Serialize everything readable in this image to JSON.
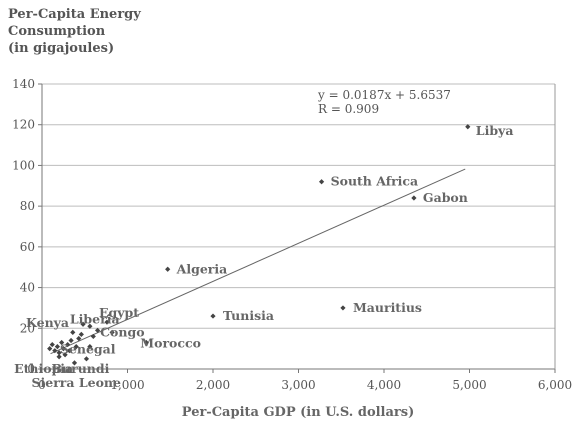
{
  "chart_data": {
    "type": "scatter",
    "title": "",
    "ylabel_lines": [
      "Per-Capita Energy",
      "Consumption",
      "(in gigajoules)"
    ],
    "xlabel": "Per-Capita GDP (in U.S. dollars)",
    "xlim": [
      0,
      6000
    ],
    "ylim": [
      0,
      140
    ],
    "xticks": [
      0,
      1000,
      2000,
      3000,
      4000,
      5000,
      6000
    ],
    "xtick_labels": [
      "0",
      "1,000",
      "2,000",
      "3,000",
      "4,000",
      "5,000",
      "6,000"
    ],
    "yticks": [
      0,
      20,
      40,
      60,
      80,
      100,
      120,
      140
    ],
    "ytick_labels": [
      "0",
      "20",
      "40",
      "60",
      "80",
      "100",
      "120",
      "140"
    ],
    "grid": "horizontal",
    "trendline": {
      "slope": 0.0187,
      "intercept": 5.6537,
      "x_range": [
        100,
        4950
      ]
    },
    "equation": "y = 0.0187x + 5.6537",
    "r_value": "R = 0.909",
    "points": [
      {
        "x": 4980,
        "y": 119,
        "label": "Libya"
      },
      {
        "x": 3270,
        "y": 92,
        "label": "South Africa"
      },
      {
        "x": 4350,
        "y": 84,
        "label": "Gabon"
      },
      {
        "x": 1470,
        "y": 49,
        "label": "Algeria"
      },
      {
        "x": 2000,
        "y": 26,
        "label": "Tunisia"
      },
      {
        "x": 3520,
        "y": 30,
        "label": "Mauritius"
      },
      {
        "x": 760,
        "y": 23,
        "label": "Egypt"
      },
      {
        "x": 560,
        "y": 21,
        "label": "Liberia"
      },
      {
        "x": 480,
        "y": 22,
        "label": "Kenya"
      },
      {
        "x": 820,
        "y": 18,
        "label": "Congo"
      },
      {
        "x": 1220,
        "y": 13,
        "label": "Morocco"
      },
      {
        "x": 560,
        "y": 11,
        "label": "Senegal"
      },
      {
        "x": 520,
        "y": 5,
        "label": "Burundi"
      },
      {
        "x": 200,
        "y": 6,
        "label": "Ethiopia"
      },
      {
        "x": 380,
        "y": 3,
        "label": "Sierra Leone"
      },
      {
        "x": 90,
        "y": 10,
        "label": ""
      },
      {
        "x": 120,
        "y": 12,
        "label": ""
      },
      {
        "x": 150,
        "y": 9,
        "label": ""
      },
      {
        "x": 180,
        "y": 11,
        "label": ""
      },
      {
        "x": 200,
        "y": 8,
        "label": ""
      },
      {
        "x": 230,
        "y": 13,
        "label": ""
      },
      {
        "x": 250,
        "y": 10,
        "label": ""
      },
      {
        "x": 270,
        "y": 7,
        "label": ""
      },
      {
        "x": 300,
        "y": 12,
        "label": ""
      },
      {
        "x": 320,
        "y": 9,
        "label": ""
      },
      {
        "x": 340,
        "y": 14,
        "label": ""
      },
      {
        "x": 360,
        "y": 18,
        "label": ""
      },
      {
        "x": 400,
        "y": 11,
        "label": ""
      },
      {
        "x": 430,
        "y": 15,
        "label": ""
      },
      {
        "x": 460,
        "y": 17,
        "label": ""
      },
      {
        "x": 600,
        "y": 16,
        "label": ""
      },
      {
        "x": 650,
        "y": 19,
        "label": ""
      }
    ]
  }
}
